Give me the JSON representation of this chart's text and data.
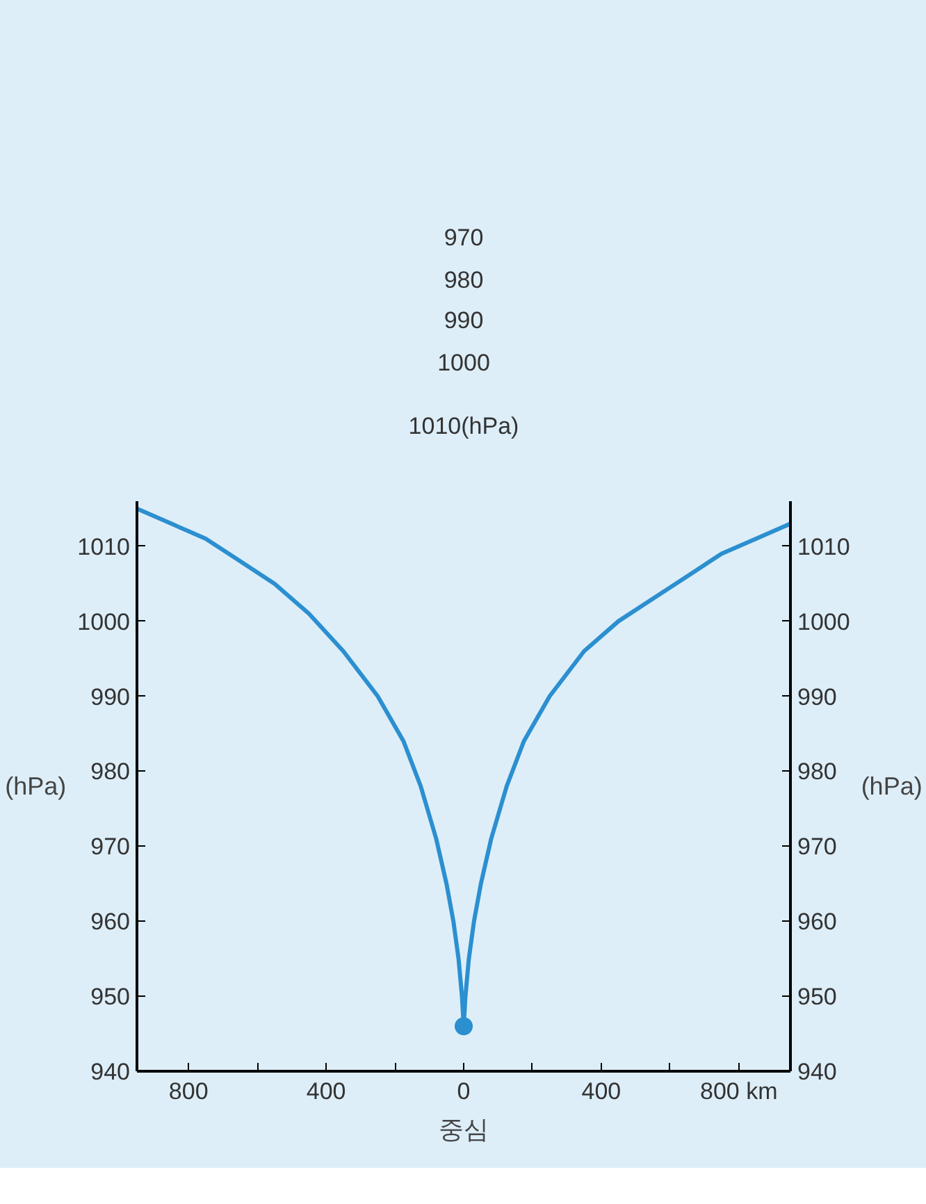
{
  "chart_data": {
    "type": "line",
    "xlabel": "중심",
    "ylabel": "(hPa)",
    "y2label": "(hPa)",
    "annotations": [
      "970",
      "980",
      "990",
      "1000",
      "1010(hPa)"
    ],
    "xlim": [
      -950,
      950
    ],
    "xticks": [
      {
        "value": -800,
        "label": "800"
      },
      {
        "value": -600,
        "label": null
      },
      {
        "value": -400,
        "label": "400"
      },
      {
        "value": -200,
        "label": null
      },
      0,
      {
        "value": 200,
        "label": null
      },
      400,
      {
        "value": 600,
        "label": null
      },
      {
        "value": 800,
        "label": "800 km"
      }
    ],
    "ylim": [
      940,
      1016
    ],
    "yticks": [
      940,
      950,
      960,
      970,
      980,
      990,
      1000,
      1010
    ],
    "y2lim": [
      940,
      1016
    ],
    "y2ticks": [
      940,
      950,
      960,
      970,
      980,
      990,
      1000,
      1010
    ],
    "grid": false,
    "line_style": "solid",
    "series": [
      {
        "color": "#2b8fd0",
        "marker": "none",
        "x": [
          -950,
          -850,
          -750,
          -650,
          -550,
          -450,
          -350,
          -250,
          -175,
          -125,
          -80,
          -50,
          -30,
          -15,
          -5,
          0,
          5,
          15,
          30,
          50,
          80,
          125,
          175,
          250,
          350,
          450,
          550,
          650,
          750,
          850,
          950
        ],
        "values": [
          1015,
          1013,
          1011,
          1008,
          1005,
          1001,
          996,
          990,
          984,
          978,
          971,
          965,
          960,
          955,
          950,
          946,
          950,
          955,
          960,
          965,
          971,
          978,
          984,
          990,
          996,
          1000,
          1003,
          1006,
          1009,
          1011,
          1013
        ]
      },
      {
        "type": "scatter",
        "color": "#2b8fd0",
        "marker": "circle",
        "x": [
          0
        ],
        "values": [
          946
        ]
      }
    ]
  }
}
